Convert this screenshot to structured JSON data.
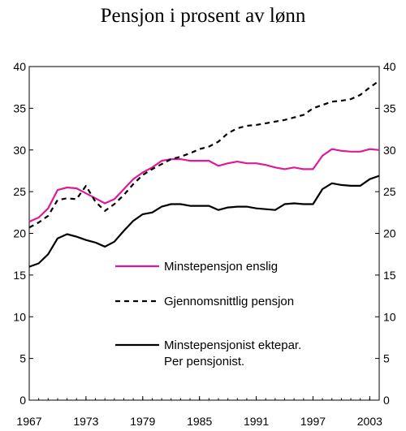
{
  "chart_data": {
    "type": "line",
    "title": "Pensjon i prosent av lønn",
    "x_ticks": [
      "1967",
      "1973",
      "1979",
      "1985",
      "1991",
      "1997",
      "2003"
    ],
    "y_ticks": [
      "0",
      "5",
      "10",
      "15",
      "20",
      "25",
      "30",
      "35",
      "40"
    ],
    "xlim": [
      1967,
      2004
    ],
    "ylim": [
      0,
      40
    ],
    "grid": false,
    "legend_position": "inside-center",
    "x": [
      1967,
      1968,
      1969,
      1970,
      1971,
      1972,
      1973,
      1974,
      1975,
      1976,
      1977,
      1978,
      1979,
      1980,
      1981,
      1982,
      1983,
      1984,
      1985,
      1986,
      1987,
      1988,
      1989,
      1990,
      1991,
      1992,
      1993,
      1994,
      1995,
      1996,
      1997,
      1998,
      1999,
      2000,
      2001,
      2002,
      2003,
      2004
    ],
    "series": [
      {
        "name": "Minstepensjon enslig",
        "color": "#e0189a",
        "dash": "solid",
        "values": [
          21.4,
          21.9,
          23.0,
          25.2,
          25.5,
          25.4,
          24.8,
          24.2,
          23.6,
          24.1,
          25.3,
          26.5,
          27.3,
          27.9,
          28.7,
          28.9,
          28.9,
          28.7,
          28.7,
          28.7,
          28.1,
          28.4,
          28.6,
          28.4,
          28.4,
          28.2,
          27.9,
          27.7,
          27.9,
          27.7,
          27.7,
          29.3,
          30.1,
          29.9,
          29.8,
          29.8,
          30.1,
          30.0
        ]
      },
      {
        "name": "Gjennomsnittlig pensjon",
        "color": "#000000",
        "dash": "dashed",
        "values": [
          20.7,
          21.3,
          22.1,
          24.0,
          24.2,
          24.1,
          25.7,
          23.8,
          22.7,
          23.5,
          24.6,
          25.9,
          27.0,
          27.7,
          28.3,
          28.9,
          29.2,
          29.6,
          30.1,
          30.4,
          31.0,
          32.0,
          32.6,
          32.9,
          33.0,
          33.2,
          33.4,
          33.6,
          33.9,
          34.2,
          35.0,
          35.4,
          35.8,
          35.9,
          36.1,
          36.6,
          37.5,
          38.3
        ]
      },
      {
        "name": "Minstepensjonist ektepar. Per pensjonist.",
        "color": "#000000",
        "dash": "solid",
        "values": [
          16.0,
          16.4,
          17.5,
          19.4,
          19.9,
          19.6,
          19.2,
          18.9,
          18.4,
          19.0,
          20.3,
          21.5,
          22.3,
          22.5,
          23.2,
          23.5,
          23.5,
          23.3,
          23.3,
          23.3,
          22.8,
          23.1,
          23.2,
          23.2,
          23.0,
          22.9,
          22.8,
          23.5,
          23.6,
          23.5,
          23.5,
          25.3,
          26.0,
          25.8,
          25.7,
          25.7,
          26.5,
          26.9
        ]
      }
    ]
  }
}
